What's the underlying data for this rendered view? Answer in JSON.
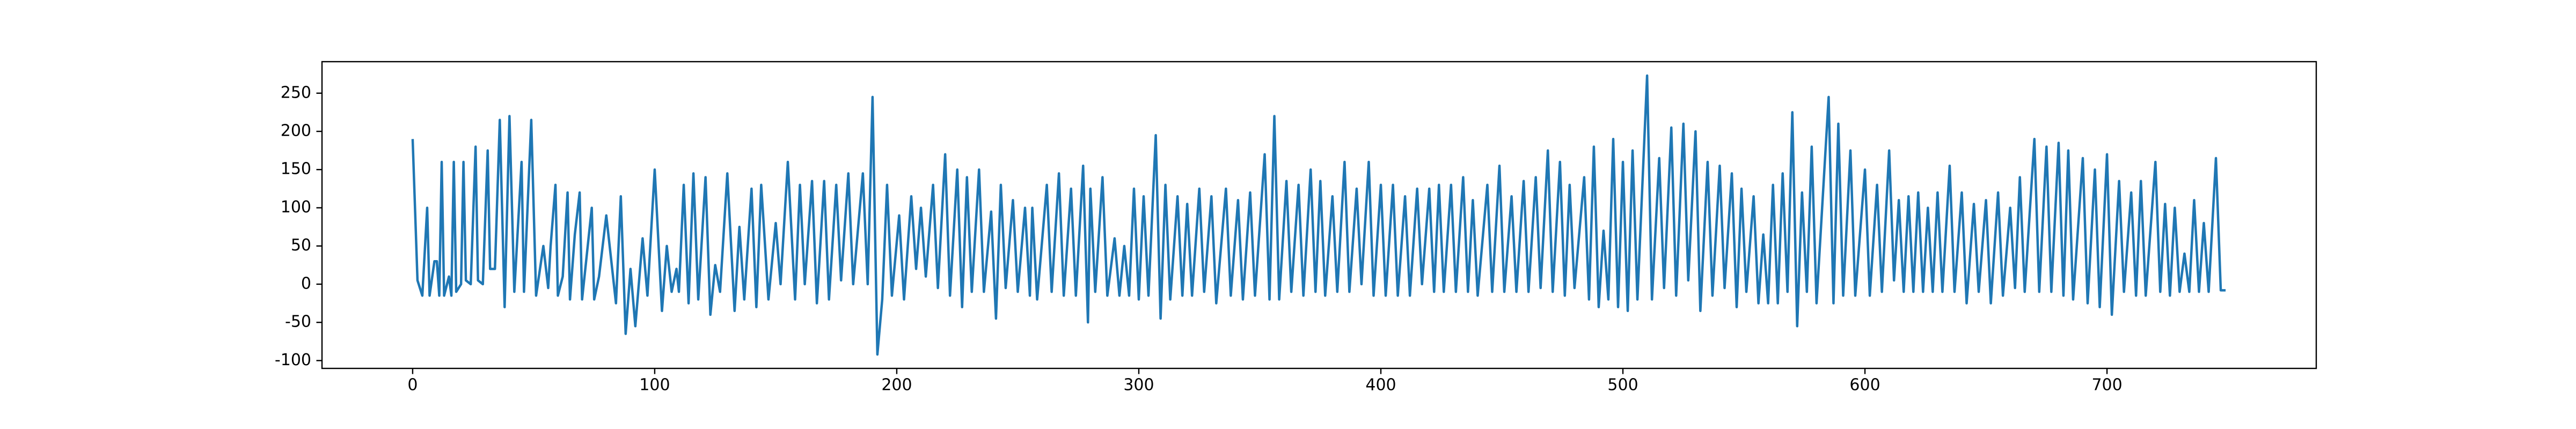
{
  "chart_data": {
    "type": "line",
    "x": [
      0,
      2,
      4,
      6,
      7,
      9,
      10,
      11,
      12,
      13,
      15,
      16,
      17,
      18,
      20,
      21,
      22,
      24,
      26,
      27,
      29,
      31,
      32,
      34,
      36,
      38,
      40,
      42,
      45,
      46,
      49,
      51,
      54,
      56,
      57,
      59,
      60,
      62,
      64,
      65,
      67,
      69,
      70,
      72,
      74,
      75,
      77,
      80,
      84,
      86,
      88,
      90,
      92,
      95,
      97,
      100,
      103,
      105,
      107,
      109,
      110,
      112,
      114,
      116,
      118,
      121,
      123,
      125,
      127,
      130,
      133,
      135,
      137,
      140,
      142,
      144,
      147,
      150,
      152,
      155,
      158,
      160,
      162,
      165,
      167,
      170,
      172,
      175,
      177,
      180,
      182,
      186,
      188,
      190,
      192,
      194,
      196,
      198,
      201,
      203,
      206,
      208,
      210,
      212,
      215,
      217,
      220,
      222,
      225,
      227,
      229,
      231,
      234,
      236,
      239,
      241,
      243,
      245,
      248,
      250,
      253,
      255,
      256,
      258,
      262,
      264,
      267,
      269,
      272,
      274,
      277,
      279,
      280,
      282,
      285,
      287,
      290,
      292,
      294,
      296,
      298,
      300,
      302,
      304,
      307,
      309,
      311,
      313,
      316,
      318,
      320,
      322,
      325,
      327,
      330,
      332,
      336,
      338,
      341,
      343,
      346,
      348,
      352,
      354,
      356,
      358,
      361,
      363,
      366,
      368,
      371,
      373,
      375,
      377,
      380,
      382,
      385,
      387,
      390,
      392,
      395,
      397,
      400,
      402,
      405,
      407,
      410,
      412,
      415,
      417,
      420,
      422,
      424,
      426,
      429,
      431,
      434,
      436,
      438,
      440,
      444,
      446,
      449,
      451,
      454,
      456,
      459,
      461,
      464,
      466,
      469,
      471,
      474,
      476,
      478,
      480,
      484,
      486,
      488,
      490,
      492,
      494,
      496,
      498,
      500,
      502,
      504,
      506,
      510,
      512,
      515,
      517,
      520,
      522,
      525,
      527,
      530,
      532,
      535,
      537,
      540,
      542,
      545,
      547,
      549,
      551,
      554,
      556,
      558,
      560,
      562,
      564,
      566,
      568,
      570,
      572,
      574,
      576,
      578,
      580,
      585,
      587,
      589,
      591,
      594,
      596,
      600,
      602,
      605,
      607,
      610,
      612,
      614,
      616,
      618,
      620,
      622,
      624,
      626,
      628,
      630,
      632,
      635,
      637,
      640,
      642,
      645,
      647,
      650,
      652,
      655,
      657,
      660,
      662,
      664,
      666,
      670,
      672,
      675,
      677,
      680,
      682,
      684,
      686,
      690,
      692,
      695,
      697,
      700,
      702,
      705,
      707,
      710,
      712,
      714,
      716,
      720,
      722,
      724,
      726,
      728,
      730,
      732,
      734,
      736,
      738,
      740,
      742,
      745,
      747,
      749
    ],
    "series": [
      {
        "color": "#1f77b4",
        "values": [
          190,
          5,
          -15,
          100,
          -15,
          30,
          30,
          -15,
          160,
          -15,
          10,
          -15,
          160,
          -10,
          0,
          160,
          5,
          0,
          180,
          5,
          0,
          175,
          20,
          20,
          215,
          -30,
          220,
          -10,
          160,
          -10,
          215,
          -15,
          50,
          -5,
          50,
          130,
          -15,
          10,
          120,
          -20,
          65,
          120,
          -20,
          40,
          100,
          -20,
          10,
          90,
          -25,
          115,
          -65,
          20,
          -55,
          60,
          -15,
          150,
          -35,
          50,
          -10,
          20,
          -10,
          130,
          -25,
          145,
          -20,
          140,
          -40,
          25,
          -10,
          145,
          -35,
          75,
          -20,
          125,
          -30,
          130,
          -20,
          80,
          0,
          160,
          -20,
          130,
          0,
          135,
          -25,
          135,
          -20,
          130,
          5,
          145,
          0,
          145,
          0,
          245,
          -92,
          -20,
          130,
          -15,
          90,
          -20,
          115,
          20,
          100,
          10,
          130,
          -5,
          170,
          -15,
          150,
          -30,
          140,
          -10,
          150,
          -10,
          95,
          -45,
          130,
          -5,
          110,
          -10,
          100,
          -15,
          100,
          -20,
          130,
          -10,
          145,
          -15,
          125,
          -15,
          155,
          -50,
          125,
          -10,
          140,
          -15,
          60,
          -15,
          50,
          -15,
          125,
          -20,
          115,
          -15,
          195,
          -45,
          130,
          -20,
          115,
          -15,
          105,
          -15,
          125,
          -10,
          115,
          -25,
          125,
          -15,
          110,
          -20,
          120,
          -15,
          170,
          -20,
          220,
          -20,
          135,
          -10,
          130,
          -15,
          150,
          -10,
          135,
          -15,
          115,
          -10,
          160,
          -10,
          125,
          0,
          160,
          -15,
          130,
          -15,
          130,
          -15,
          115,
          -15,
          125,
          0,
          125,
          -10,
          130,
          -10,
          130,
          -10,
          140,
          -10,
          110,
          -15,
          130,
          -10,
          155,
          -10,
          115,
          -10,
          135,
          -10,
          140,
          -5,
          175,
          -10,
          160,
          -15,
          130,
          -5,
          140,
          -20,
          180,
          -30,
          70,
          -20,
          190,
          -30,
          160,
          -35,
          175,
          -20,
          273,
          -20,
          165,
          -5,
          205,
          -15,
          210,
          5,
          200,
          -35,
          160,
          -15,
          155,
          -5,
          145,
          -30,
          125,
          -10,
          115,
          -25,
          65,
          -25,
          130,
          -25,
          145,
          -10,
          225,
          -55,
          120,
          -10,
          180,
          -25,
          245,
          -25,
          210,
          -15,
          175,
          -15,
          150,
          -15,
          130,
          -10,
          175,
          5,
          110,
          -10,
          115,
          -10,
          120,
          -10,
          100,
          -10,
          120,
          -10,
          155,
          -10,
          120,
          -25,
          105,
          -10,
          110,
          -25,
          120,
          -15,
          100,
          -5,
          140,
          -10,
          190,
          -10,
          180,
          -10,
          185,
          -15,
          175,
          -20,
          165,
          -25,
          150,
          -30,
          170,
          -40,
          135,
          -10,
          120,
          -15,
          135,
          -15,
          160,
          -10,
          105,
          -15,
          100,
          -10,
          40,
          -10,
          110,
          -10,
          80,
          -10,
          165,
          -8,
          -8
        ]
      }
    ],
    "xlim": [
      -37.45,
      786.45
    ],
    "ylim": [
      -110.25,
      291.25
    ],
    "xticks": [
      0,
      100,
      200,
      300,
      400,
      500,
      600,
      700
    ],
    "yticks": [
      -100,
      -50,
      0,
      50,
      100,
      150,
      200,
      250
    ]
  }
}
